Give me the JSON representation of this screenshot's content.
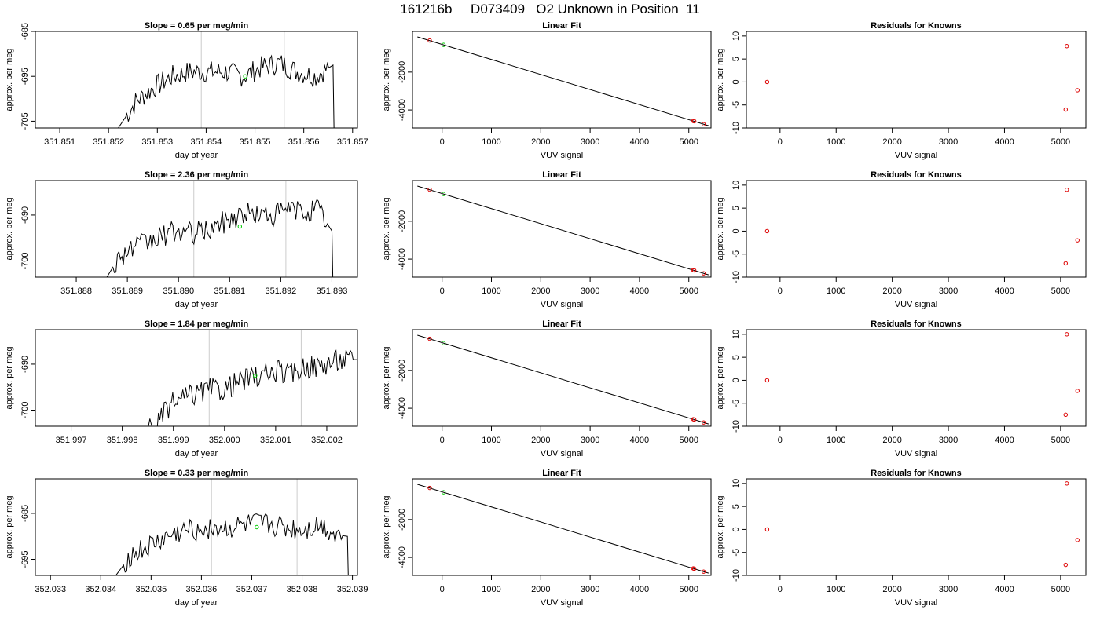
{
  "title": "161216b     D073409   O2 Unknown in Position  11",
  "chart_data": [
    {
      "type": "line",
      "title": "Slope =  0.65  per meg/min",
      "xlabel": "day of year",
      "ylabel": "approx. per meg",
      "xlim": [
        351.8505,
        351.8571
      ],
      "ylim": [
        -706.5,
        -685
      ],
      "xticks": [
        "351.851",
        "351.852",
        "351.853",
        "351.854",
        "351.855",
        "351.856",
        "351.857"
      ],
      "yticks": [
        "-685",
        "-695",
        "-705"
      ],
      "vlines": [
        351.8539,
        351.8556
      ],
      "marker": {
        "x": 351.8548,
        "y": -695,
        "color": "#00cc00"
      },
      "trace": {
        "start": 351.8522,
        "end": 351.8566,
        "base": -706.5,
        "levels": [
          -706.5,
          -700.5,
          -697.5,
          -695,
          -694,
          -694,
          -694,
          -695,
          -693,
          -692,
          -694,
          -695,
          -692.5
        ]
      }
    },
    {
      "type": "scatter",
      "title": "Linear Fit",
      "xlabel": "VUV signal",
      "ylabel": "approx. per meg",
      "xlim": [
        -600,
        5450
      ],
      "ylim": [
        -4950,
        150
      ],
      "xticks": [
        "0",
        "1000",
        "2000",
        "3000",
        "4000",
        "5000"
      ],
      "yticks": [
        "-2000",
        "-4000"
      ],
      "points": [
        [
          -250,
          -330
        ],
        [
          5090,
          -4580
        ],
        [
          5110,
          -4595
        ],
        [
          5300,
          -4750
        ]
      ],
      "unknown": [
        [
          30,
          -560
        ]
      ],
      "fit_line": [
        [
          -500,
          -140
        ],
        [
          5400,
          -4830
        ]
      ]
    },
    {
      "type": "scatter",
      "title": "Residuals for Knowns",
      "xlabel": "VUV signal",
      "ylabel": "approx. per meg",
      "xlim": [
        -600,
        5450
      ],
      "ylim": [
        -10,
        11
      ],
      "xticks": [
        "0",
        "1000",
        "2000",
        "3000",
        "4000",
        "5000"
      ],
      "yticks": [
        "-10",
        "-5",
        "0",
        "5",
        "10"
      ],
      "points": [
        [
          -230,
          0
        ],
        [
          5110,
          7.8
        ],
        [
          5300,
          -1.8
        ],
        [
          5090,
          -6
        ]
      ]
    },
    {
      "type": "line",
      "title": "Slope =  2.36  per meg/min",
      "xlabel": "day of year",
      "ylabel": "approx. per meg",
      "xlim": [
        351.8872,
        351.8935
      ],
      "ylim": [
        -703.5,
        -682.5
      ],
      "xticks": [
        "351.888",
        "351.889",
        "351.890",
        "351.891",
        "351.892",
        "351.893"
      ],
      "yticks": [
        "-690",
        "-700"
      ],
      "vlines": [
        351.8903,
        351.8921
      ],
      "marker": {
        "x": 351.8912,
        "y": -692.5,
        "color": "#00cc00"
      },
      "trace": {
        "start": 351.8886,
        "end": 351.893,
        "base": -703.5,
        "levels": [
          -703.5,
          -698.5,
          -697,
          -696,
          -694.5,
          -693.5,
          -694,
          -693.5,
          -692,
          -690.5,
          -689.5,
          -690,
          -690,
          -688.5,
          -689.5,
          -688.5,
          -693.5
        ]
      }
    },
    {
      "type": "scatter",
      "title": "Linear Fit",
      "xlabel": "VUV signal",
      "ylabel": "approx. per meg",
      "xlim": [
        -600,
        5450
      ],
      "ylim": [
        -4950,
        150
      ],
      "xticks": [
        "0",
        "1000",
        "2000",
        "3000",
        "4000",
        "5000"
      ],
      "yticks": [
        "-2000",
        "-4000"
      ],
      "points": [
        [
          -250,
          -330
        ],
        [
          5090,
          -4580
        ],
        [
          5110,
          -4595
        ],
        [
          5300,
          -4750
        ]
      ],
      "unknown": [
        [
          30,
          -560
        ]
      ],
      "fit_line": [
        [
          -500,
          -140
        ],
        [
          5400,
          -4830
        ]
      ]
    },
    {
      "type": "scatter",
      "title": "Residuals for Knowns",
      "xlabel": "VUV signal",
      "ylabel": "approx. per meg",
      "xlim": [
        -600,
        5450
      ],
      "ylim": [
        -10,
        11
      ],
      "xticks": [
        "0",
        "1000",
        "2000",
        "3000",
        "4000",
        "5000"
      ],
      "yticks": [
        "-10",
        "-5",
        "0",
        "5",
        "10"
      ],
      "points": [
        [
          -230,
          0
        ],
        [
          5110,
          9
        ],
        [
          5300,
          -2
        ],
        [
          5090,
          -7
        ]
      ]
    },
    {
      "type": "line",
      "title": "Slope =  1.84  per meg/min",
      "xlabel": "day of year",
      "ylabel": "approx. per meg",
      "xlim": [
        351.9963,
        352.0026
      ],
      "ylim": [
        -703.5,
        -682.5
      ],
      "xticks": [
        "351.997",
        "351.998",
        "351.999",
        "352.000",
        "352.001",
        "352.002"
      ],
      "yticks": [
        "-690",
        "-700"
      ],
      "vlines": [
        351.9997,
        352.0015
      ],
      "marker": {
        "x": 352.0006,
        "y": -692.5,
        "color": "#00cc00"
      },
      "trace": {
        "start": 351.9984,
        "end": 352.0026,
        "base": -703.5,
        "levels": [
          -703.5,
          -703.5,
          -699,
          -697.5,
          -696.5,
          -695.5,
          -695.5,
          -694,
          -693,
          -692.5,
          -691.5,
          -692.5,
          -690.5,
          -690.5,
          -689.5,
          -689,
          -689
        ]
      }
    },
    {
      "type": "scatter",
      "title": "Linear Fit",
      "xlabel": "VUV signal",
      "ylabel": "approx. per meg",
      "xlim": [
        -600,
        5450
      ],
      "ylim": [
        -4950,
        150
      ],
      "xticks": [
        "0",
        "1000",
        "2000",
        "3000",
        "4000",
        "5000"
      ],
      "yticks": [
        "-2000",
        "-4000"
      ],
      "points": [
        [
          -250,
          -330
        ],
        [
          5090,
          -4580
        ],
        [
          5110,
          -4595
        ],
        [
          5300,
          -4750
        ]
      ],
      "unknown": [
        [
          30,
          -560
        ]
      ],
      "fit_line": [
        [
          -500,
          -140
        ],
        [
          5400,
          -4830
        ]
      ]
    },
    {
      "type": "scatter",
      "title": "Residuals for Knowns",
      "xlabel": "VUV signal",
      "ylabel": "approx. per meg",
      "xlim": [
        -600,
        5450
      ],
      "ylim": [
        -10,
        11
      ],
      "xticks": [
        "0",
        "1000",
        "2000",
        "3000",
        "4000",
        "5000"
      ],
      "yticks": [
        "-10",
        "-5",
        "0",
        "5",
        "10"
      ],
      "points": [
        [
          -230,
          0
        ],
        [
          5110,
          10
        ],
        [
          5300,
          -2.3
        ],
        [
          5090,
          -7.5
        ]
      ]
    },
    {
      "type": "line",
      "title": "Slope =  0.33  per meg/min",
      "xlabel": "day of year",
      "ylabel": "approx. per meg",
      "xlim": [
        352.0327,
        352.0391
      ],
      "ylim": [
        -698.5,
        -677.5
      ],
      "xticks": [
        "352.033",
        "352.034",
        "352.035",
        "352.036",
        "352.037",
        "352.038",
        "352.039"
      ],
      "yticks": [
        "-685",
        "-695"
      ],
      "vlines": [
        352.0362,
        352.0379
      ],
      "marker": {
        "x": 352.0371,
        "y": -688,
        "color": "#00cc00"
      },
      "trace": {
        "start": 352.0343,
        "end": 352.0389,
        "base": -698.5,
        "levels": [
          -698.5,
          -694.5,
          -693,
          -691.5,
          -690,
          -689,
          -688.5,
          -688,
          -688.5,
          -688,
          -687.5,
          -687.5,
          -688,
          -688.5,
          -688.5,
          -687.5,
          -689.5,
          -690
        ]
      }
    },
    {
      "type": "scatter",
      "title": "Linear Fit",
      "xlabel": "VUV signal",
      "ylabel": "approx. per meg",
      "xlim": [
        -600,
        5450
      ],
      "ylim": [
        -4950,
        150
      ],
      "xticks": [
        "0",
        "1000",
        "2000",
        "3000",
        "4000",
        "5000"
      ],
      "yticks": [
        "-2000",
        "-4000"
      ],
      "points": [
        [
          -250,
          -330
        ],
        [
          5090,
          -4580
        ],
        [
          5110,
          -4595
        ],
        [
          5300,
          -4750
        ]
      ],
      "unknown": [
        [
          30,
          -560
        ]
      ],
      "fit_line": [
        [
          -500,
          -140
        ],
        [
          5400,
          -4830
        ]
      ]
    },
    {
      "type": "scatter",
      "title": "Residuals for Knowns",
      "xlabel": "VUV signal",
      "ylabel": "approx. per meg",
      "xlim": [
        -600,
        5450
      ],
      "ylim": [
        -10,
        11
      ],
      "xticks": [
        "0",
        "1000",
        "2000",
        "3000",
        "4000",
        "5000"
      ],
      "yticks": [
        "-10",
        "-5",
        "0",
        "5",
        "10"
      ],
      "points": [
        [
          -230,
          0
        ],
        [
          5110,
          10
        ],
        [
          5300,
          -2.3
        ],
        [
          5090,
          -7.7
        ]
      ]
    }
  ]
}
